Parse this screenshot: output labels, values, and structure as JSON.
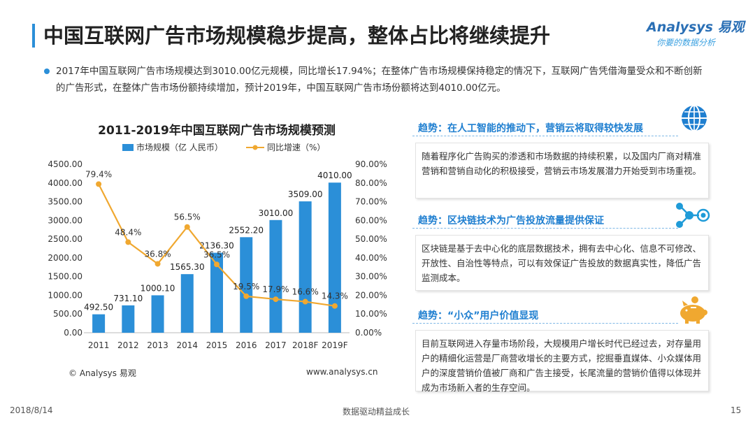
{
  "header": {
    "title": "中国互联网广告市场规模稳步提高，整体占比将继续提升",
    "logo_main": "Analysys 易观",
    "logo_sub": "你要的数据分析"
  },
  "intro": "2017年中国互联网广告市场规模达到3010.00亿元规模，同比增长17.94%；在整体广告市场规模保持稳定的情况下，互联网广告凭借海量受众和不断创新的广告形式，在整体广告市场份额持续增加，预计2019年，中国互联网广告市场份额将达到4010.00亿元。",
  "chart_data": {
    "type": "bar",
    "title": "2011-2019年中国互联网广告市场规模预测",
    "categories": [
      "2011",
      "2012",
      "2013",
      "2014",
      "2015",
      "2016",
      "2017",
      "2018F",
      "2019F"
    ],
    "series": [
      {
        "name": "市场规模（亿 人民币）",
        "type": "bar",
        "axis": "left",
        "values": [
          492.5,
          731.1,
          1000.1,
          1565.3,
          2136.3,
          2552.2,
          3010.0,
          3509.0,
          4010.0
        ],
        "labels": [
          "492.50",
          "731.10",
          "1000.10",
          "1565.30",
          "2136.30",
          "2552.20",
          "3010.00",
          "3509.00",
          "4010.00"
        ],
        "color": "#2b8fd8"
      },
      {
        "name": "同比增速（%）",
        "type": "line",
        "axis": "right",
        "values": [
          79.4,
          48.4,
          36.8,
          56.5,
          36.5,
          19.5,
          17.9,
          16.6,
          14.3
        ],
        "labels": [
          "79.4%",
          "48.4%",
          "36.8%",
          "56.5%",
          "36.5%",
          "19.5%",
          "17.9%",
          "16.6%",
          "14.3%"
        ],
        "color": "#f0a830"
      }
    ],
    "ylim_left": [
      0,
      4500
    ],
    "ylim_right": [
      0,
      90
    ],
    "yticks_left": [
      "0.00",
      "500.00",
      "1000.00",
      "1500.00",
      "2000.00",
      "2500.00",
      "3000.00",
      "3500.00",
      "4000.00",
      "4500.00"
    ],
    "yticks_right": [
      "0.00%",
      "10.00%",
      "20.00%",
      "30.00%",
      "40.00%",
      "50.00%",
      "60.00%",
      "70.00%",
      "80.00%",
      "90.00%"
    ],
    "legend_position": "top",
    "grid": false
  },
  "chart_footer": {
    "copyright": "© Analysys 易观",
    "website": "www.analysys.cn"
  },
  "trends": [
    {
      "title": "趋势：在人工智能的推动下，营销云将取得较快发展",
      "body": "随着程序化广告购买的渗透和市场数据的持续积累，以及国内厂商对精准营销和营销自动化的积极接受，营销云市场发展潜力开始受到市场重视。",
      "icon": "globe-icon"
    },
    {
      "title": "趋势：区块链技术为广告投放流量提供保证",
      "body": "区块链是基于去中心化的底层数据技术，拥有去中心化、信息不可修改、开放性、自治性等特点，可以有效保证广告投放的数据真实性，降低广告监测成本。",
      "icon": "network-icon"
    },
    {
      "title": "趋势：“小众”用户价值显现",
      "body": "目前互联网进入存量市场阶段，大规模用户增长时代已经过去，对存量用户的精细化运营是厂商营收增长的主要方式，挖掘垂直媒体、小众媒体用户的深度营销价值被厂商和广告主接受，长尾流量的营销价值得以体现并成为市场新入者的生存空间。",
      "icon": "piggy-bank-icon"
    }
  ],
  "footer": {
    "date": "2018/8/14",
    "slogan": "数据驱动精益成长",
    "page": "15"
  },
  "colors": {
    "accent": "#2b8fd8",
    "line": "#f0a830",
    "trend_title": "#1f7fd0"
  }
}
